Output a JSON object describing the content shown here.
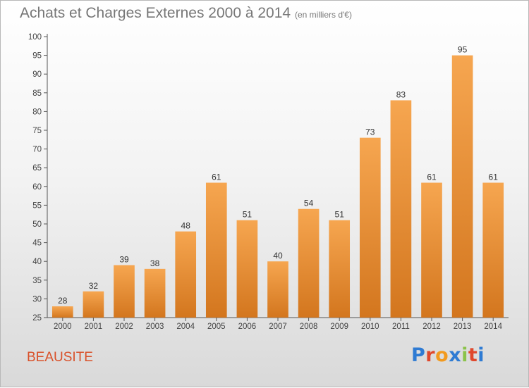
{
  "page": {
    "title": "Achats et Charges Externes 2000 à 2014",
    "unit_note": "(en milliers d'€)",
    "commune": "BEAUSITE",
    "logo_text": "Proxiti",
    "logo_colors": [
      "#2f7bd3",
      "#e0482c",
      "#f29a1e",
      "#2f7bd3",
      "#8bc34a",
      "#e0482c",
      "#2f7bd3"
    ]
  },
  "chart_data": {
    "type": "bar",
    "title": "Achats et Charges Externes 2000 à 2014",
    "subtitle": "(en milliers d'€)",
    "xlabel": "",
    "ylabel": "",
    "categories": [
      "2000",
      "2001",
      "2002",
      "2003",
      "2004",
      "2005",
      "2006",
      "2007",
      "2008",
      "2009",
      "2010",
      "2011",
      "2012",
      "2013",
      "2014"
    ],
    "values": [
      28,
      32,
      39,
      38,
      48,
      61,
      51,
      40,
      54,
      51,
      73,
      83,
      61,
      95,
      61
    ],
    "ylim": [
      25,
      100
    ],
    "yticks": [
      25,
      30,
      35,
      40,
      45,
      50,
      55,
      60,
      65,
      70,
      75,
      80,
      85,
      90,
      95,
      100
    ],
    "grid": false,
    "legend": "none",
    "bar_color_top": "#f6a650",
    "bar_color_bottom": "#d3761e",
    "data_labels": true
  }
}
